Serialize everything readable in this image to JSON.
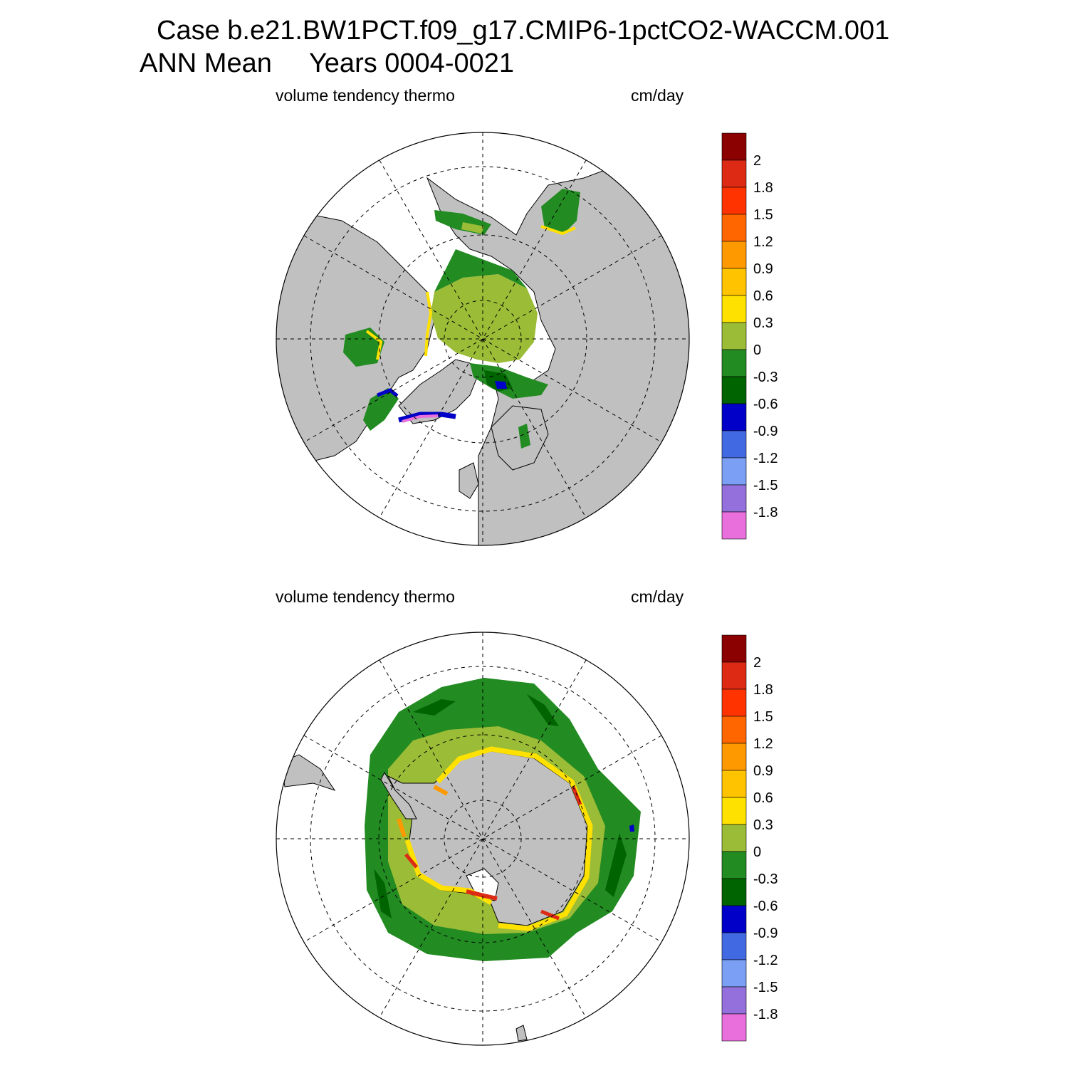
{
  "title": {
    "line1": "Case b.e21.BW1PCT.f09_g17.CMIP6-1pctCO2-WACCM.001",
    "line2": "ANN Mean     Years 0004-0021"
  },
  "panels": [
    {
      "id": "north",
      "hemisphere": "Northern Hemisphere (polar stereographic)",
      "variable_label": "volume tendency thermo",
      "units_label": "cm/day"
    },
    {
      "id": "south",
      "hemisphere": "Southern Hemisphere (polar stereographic)",
      "variable_label": "volume tendency thermo",
      "units_label": "cm/day"
    }
  ],
  "colorbar": {
    "colors": [
      "#e86fdc",
      "#9370db",
      "#7b9ff5",
      "#4169e1",
      "#0000c8",
      "#006400",
      "#228b22",
      "#9bbc36",
      "#ffe100",
      "#ffc300",
      "#ff9900",
      "#ff6600",
      "#ff3300",
      "#dc2a14",
      "#8b0000"
    ],
    "tick_labels": [
      "-1.8",
      "-1.5",
      "-1.2",
      "-0.9",
      "-0.6",
      "-0.3",
      "0",
      "0.3",
      "0.6",
      "0.9",
      "1.2",
      "1.5",
      "1.8",
      "2"
    ]
  },
  "map_colors": {
    "land": "#c0c0c0",
    "ocean_missing": "#ffffff",
    "green_light": "#9bbc36",
    "green": "#228b22",
    "green_dark": "#006400",
    "yellow": "#ffe100",
    "orange": "#ff9900",
    "red": "#dc2a14",
    "blue": "#0000c8",
    "violet": "#e86fdc"
  }
}
